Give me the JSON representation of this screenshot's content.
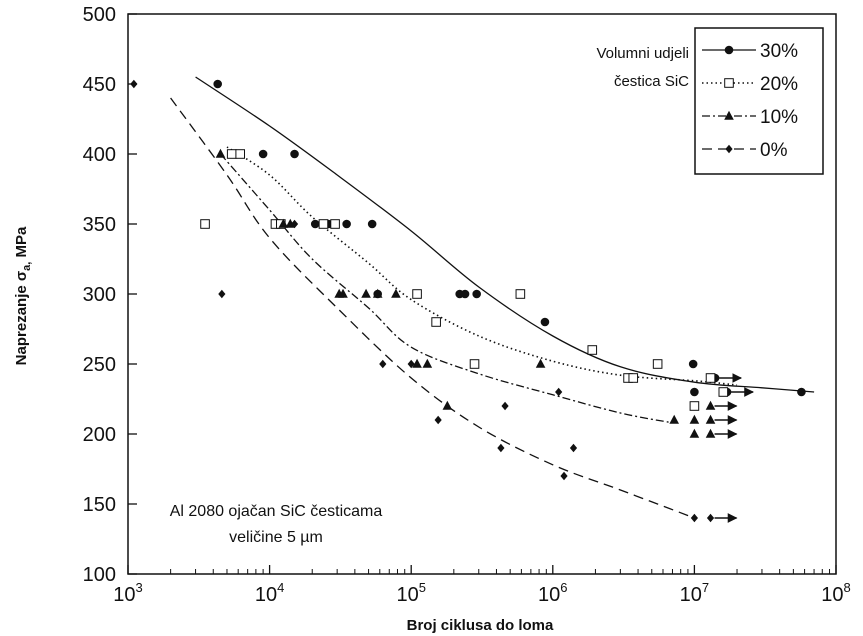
{
  "chart_data": {
    "type": "scatter",
    "xlabel": "Broj ciklusa do loma",
    "ylabel": "Naprezanje  σa, MPa",
    "ylabel_parts": {
      "main": "Naprezanje  σ",
      "sub": "a,",
      "unit": " MPa"
    },
    "x_scale": "log",
    "xlim": [
      1000,
      100000000
    ],
    "ylim": [
      100,
      500
    ],
    "x_ticks": [
      {
        "value": 1000,
        "base": "10",
        "exp": "3"
      },
      {
        "value": 10000,
        "base": "10",
        "exp": "4"
      },
      {
        "value": 100000,
        "base": "10",
        "exp": "5"
      },
      {
        "value": 1000000,
        "base": "10",
        "exp": "6"
      },
      {
        "value": 10000000,
        "base": "10",
        "exp": "7"
      },
      {
        "value": 100000000,
        "base": "10",
        "exp": "8"
      }
    ],
    "y_ticks": [
      "100",
      "150",
      "200",
      "250",
      "300",
      "350",
      "400",
      "450",
      "500"
    ],
    "legend_title": [
      "Volumni udjeli",
      "čestica SiC"
    ],
    "legend_position": "top-right",
    "annotation": [
      "Al 2080 ojačan SiC česticama",
      "veličine 5 µm"
    ],
    "grid": false,
    "series": [
      {
        "name": "30%",
        "marker": "circle-filled",
        "line_style": "solid",
        "points": [
          [
            4300,
            450
          ],
          [
            15000,
            400
          ],
          [
            9000,
            400
          ],
          [
            21000,
            350
          ],
          [
            26000,
            350
          ],
          [
            35000,
            350
          ],
          [
            53000,
            350
          ],
          [
            58000,
            300
          ],
          [
            220000,
            300
          ],
          [
            240000,
            300
          ],
          [
            290000,
            300
          ],
          [
            880000,
            280
          ],
          [
            1900000,
            260
          ],
          [
            9800000,
            250
          ],
          [
            10000000,
            230
          ],
          [
            57000000,
            230
          ]
        ],
        "runouts": [
          [
            14000000,
            240
          ],
          [
            17000000,
            230
          ]
        ],
        "curve": [
          [
            3000,
            455
          ],
          [
            10000,
            420
          ],
          [
            30000,
            385
          ],
          [
            100000,
            345
          ],
          [
            300000,
            305
          ],
          [
            1000000,
            270
          ],
          [
            3000000,
            248
          ],
          [
            10000000,
            237
          ],
          [
            30000000,
            233
          ],
          [
            70000000,
            230
          ]
        ]
      },
      {
        "name": "20%",
        "marker": "square-open",
        "line_style": "dotted",
        "points": [
          [
            3500,
            350
          ],
          [
            5400,
            400
          ],
          [
            6200,
            400
          ],
          [
            11000,
            350
          ],
          [
            12000,
            350
          ],
          [
            24000,
            350
          ],
          [
            29000,
            350
          ],
          [
            110000,
            300
          ],
          [
            150000,
            280
          ],
          [
            280000,
            250
          ],
          [
            590000,
            300
          ],
          [
            1900000,
            260
          ],
          [
            3400000,
            240
          ],
          [
            3700000,
            240
          ],
          [
            5500000,
            250
          ],
          [
            10000000,
            220
          ],
          [
            13000000,
            240
          ],
          [
            16000000,
            230
          ]
        ],
        "runouts": [],
        "curve": [
          [
            5000,
            405
          ],
          [
            10000,
            385
          ],
          [
            20000,
            355
          ],
          [
            50000,
            322
          ],
          [
            100000,
            296
          ],
          [
            300000,
            270
          ],
          [
            1000000,
            252
          ],
          [
            3000000,
            242
          ],
          [
            10000000,
            238
          ],
          [
            20000000,
            235
          ]
        ]
      },
      {
        "name": "10%",
        "marker": "triangle-filled",
        "line_style": "dashdot",
        "points": [
          [
            4500,
            400
          ],
          [
            12500,
            350
          ],
          [
            14000,
            350
          ],
          [
            31000,
            300
          ],
          [
            33000,
            300
          ],
          [
            48000,
            300
          ],
          [
            58000,
            300
          ],
          [
            78000,
            300
          ],
          [
            110000,
            250
          ],
          [
            130000,
            250
          ],
          [
            180000,
            220
          ],
          [
            820000,
            250
          ],
          [
            7200000,
            210
          ],
          [
            10000000,
            210
          ],
          [
            10000000,
            200
          ]
        ],
        "runouts": [
          [
            13000000,
            220
          ],
          [
            13000000,
            210
          ],
          [
            13000000,
            200
          ]
        ],
        "curve": [
          [
            4500,
            400
          ],
          [
            10000,
            360
          ],
          [
            20000,
            325
          ],
          [
            50000,
            290
          ],
          [
            100000,
            262
          ],
          [
            300000,
            243
          ],
          [
            1000000,
            228
          ],
          [
            3000000,
            215
          ],
          [
            7000000,
            208
          ]
        ]
      },
      {
        "name": "0%",
        "marker": "diamond-filled",
        "line_style": "dashed",
        "points": [
          [
            1100,
            450
          ],
          [
            4600,
            300
          ],
          [
            15000,
            350
          ],
          [
            63000,
            250
          ],
          [
            100000,
            250
          ],
          [
            155000,
            210
          ],
          [
            430000,
            190
          ],
          [
            460000,
            220
          ],
          [
            1200000,
            170
          ],
          [
            1400000,
            190
          ],
          [
            1100000,
            230
          ],
          [
            10000000,
            140
          ]
        ],
        "runouts": [
          [
            13000000,
            140
          ]
        ],
        "curve": [
          [
            2000,
            440
          ],
          [
            5000,
            385
          ],
          [
            10000,
            340
          ],
          [
            30000,
            290
          ],
          [
            100000,
            240
          ],
          [
            300000,
            205
          ],
          [
            1000000,
            178
          ],
          [
            3000000,
            160
          ],
          [
            10000000,
            140
          ]
        ]
      }
    ]
  }
}
